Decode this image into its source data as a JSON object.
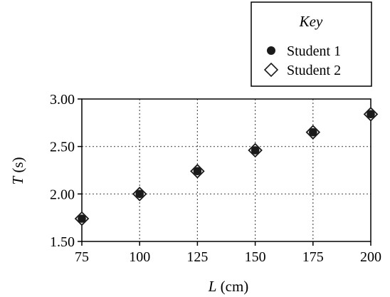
{
  "chart_data": {
    "type": "scatter",
    "xlabel": {
      "var": "L",
      "unit": " (cm)"
    },
    "ylabel": {
      "var": "T",
      "unit": " (s)"
    },
    "xlim": [
      75,
      200
    ],
    "ylim": [
      1.5,
      3.0
    ],
    "x_ticks": [
      75,
      100,
      125,
      150,
      175,
      200
    ],
    "x_tick_labels": [
      "75",
      "100",
      "125",
      "150",
      "175",
      "200"
    ],
    "y_ticks": [
      1.5,
      2.0,
      2.5,
      3.0
    ],
    "y_tick_labels": [
      "1.50",
      "2.00",
      "2.50",
      "3.00"
    ],
    "grid": "dotted",
    "legend": {
      "title": "Key",
      "placement": "top-right, above plot"
    },
    "series": [
      {
        "name": "Student 1",
        "marker": "filled-circle",
        "color": "#1a1a1a",
        "points": [
          [
            75,
            1.74
          ],
          [
            100,
            2.0
          ],
          [
            125,
            2.24
          ],
          [
            150,
            2.46
          ],
          [
            175,
            2.65
          ],
          [
            200,
            2.84
          ]
        ]
      },
      {
        "name": "Student 2",
        "marker": "open-diamond",
        "color": "#1a1a1a",
        "points": [
          [
            75,
            1.74
          ],
          [
            100,
            2.0
          ],
          [
            125,
            2.24
          ],
          [
            150,
            2.46
          ],
          [
            175,
            2.65
          ],
          [
            200,
            2.84
          ]
        ]
      }
    ]
  }
}
